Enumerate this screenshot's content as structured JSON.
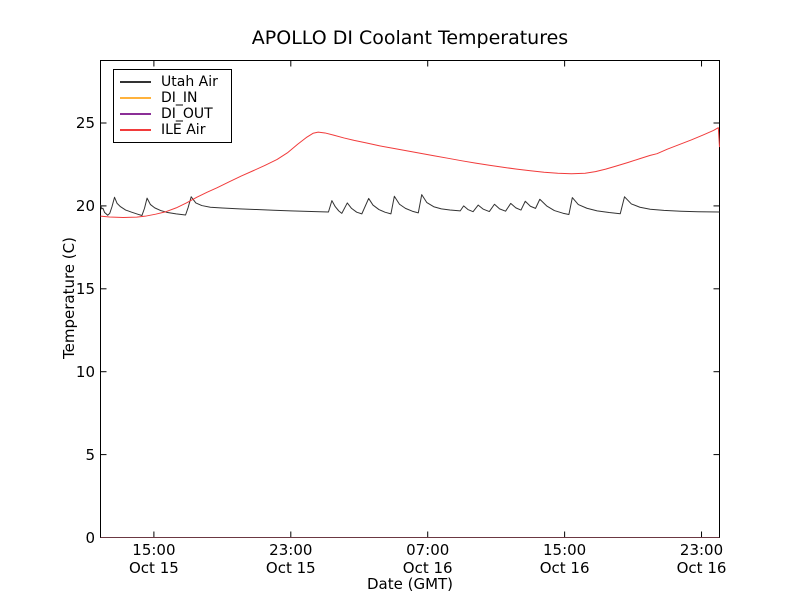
{
  "chart_data": {
    "type": "line",
    "title": "APOLLO DI Coolant Temperatures",
    "xlabel": "Date (GMT)",
    "ylabel": "Temperature (C)",
    "x_unit": "hours since Oct 15 00:00 GMT",
    "xlim": [
      11.88,
      48.05
    ],
    "ylim": [
      0,
      28.77
    ],
    "grid": false,
    "legend_position": "upper-left",
    "x_ticks": [
      {
        "t": 15,
        "time": "15:00",
        "date": "Oct 15"
      },
      {
        "t": 23,
        "time": "23:00",
        "date": "Oct 15"
      },
      {
        "t": 31,
        "time": "07:00",
        "date": "Oct 16"
      },
      {
        "t": 39,
        "time": "15:00",
        "date": "Oct 16"
      },
      {
        "t": 47,
        "time": "23:00",
        "date": "Oct 16"
      }
    ],
    "y_ticks": [
      0,
      5,
      10,
      15,
      20,
      25
    ],
    "y_tick_labels": [
      "0",
      "5",
      "10",
      "15",
      "20",
      "25"
    ],
    "series": [
      {
        "name": "Utah Air",
        "color": "#333333",
        "points": [
          [
            11.88,
            20.08
          ],
          [
            11.95,
            19.82
          ],
          [
            12.02,
            19.86
          ],
          [
            12.12,
            19.6
          ],
          [
            12.3,
            19.44
          ],
          [
            12.42,
            19.55
          ],
          [
            12.55,
            19.95
          ],
          [
            12.7,
            20.52
          ],
          [
            12.85,
            20.15
          ],
          [
            13.05,
            19.95
          ],
          [
            13.35,
            19.75
          ],
          [
            13.7,
            19.62
          ],
          [
            14.05,
            19.5
          ],
          [
            14.3,
            19.42
          ],
          [
            14.45,
            19.85
          ],
          [
            14.6,
            20.47
          ],
          [
            14.8,
            20.08
          ],
          [
            15.05,
            19.88
          ],
          [
            15.4,
            19.72
          ],
          [
            15.8,
            19.6
          ],
          [
            16.3,
            19.52
          ],
          [
            16.85,
            19.45
          ],
          [
            17.0,
            19.9
          ],
          [
            17.18,
            20.55
          ],
          [
            17.45,
            20.18
          ],
          [
            17.8,
            20.02
          ],
          [
            18.3,
            19.92
          ],
          [
            19.0,
            19.87
          ],
          [
            20.0,
            19.82
          ],
          [
            21.0,
            19.78
          ],
          [
            22.0,
            19.74
          ],
          [
            23.0,
            19.7
          ],
          [
            24.2,
            19.66
          ],
          [
            25.2,
            19.63
          ],
          [
            25.4,
            20.32
          ],
          [
            25.6,
            19.95
          ],
          [
            25.8,
            19.7
          ],
          [
            25.98,
            19.55
          ],
          [
            26.3,
            20.18
          ],
          [
            26.55,
            19.85
          ],
          [
            26.85,
            19.62
          ],
          [
            27.15,
            19.52
          ],
          [
            27.55,
            20.45
          ],
          [
            27.8,
            20.05
          ],
          [
            28.15,
            19.78
          ],
          [
            28.5,
            19.62
          ],
          [
            28.85,
            19.52
          ],
          [
            29.05,
            20.58
          ],
          [
            29.35,
            20.1
          ],
          [
            29.7,
            19.85
          ],
          [
            30.1,
            19.68
          ],
          [
            30.45,
            19.58
          ],
          [
            30.65,
            20.68
          ],
          [
            30.95,
            20.2
          ],
          [
            31.35,
            19.95
          ],
          [
            31.8,
            19.82
          ],
          [
            32.3,
            19.75
          ],
          [
            32.9,
            19.7
          ],
          [
            33.1,
            20.0
          ],
          [
            33.35,
            19.78
          ],
          [
            33.65,
            19.65
          ],
          [
            33.95,
            20.05
          ],
          [
            34.25,
            19.8
          ],
          [
            34.6,
            19.66
          ],
          [
            34.9,
            20.1
          ],
          [
            35.2,
            19.82
          ],
          [
            35.55,
            19.68
          ],
          [
            35.85,
            20.15
          ],
          [
            36.15,
            19.88
          ],
          [
            36.45,
            19.75
          ],
          [
            36.7,
            20.28
          ],
          [
            37.0,
            19.98
          ],
          [
            37.3,
            19.85
          ],
          [
            37.55,
            20.4
          ],
          [
            37.95,
            20.0
          ],
          [
            38.4,
            19.72
          ],
          [
            38.9,
            19.56
          ],
          [
            39.25,
            19.48
          ],
          [
            39.45,
            20.5
          ],
          [
            39.8,
            20.08
          ],
          [
            40.3,
            19.86
          ],
          [
            40.9,
            19.7
          ],
          [
            41.6,
            19.6
          ],
          [
            42.25,
            19.53
          ],
          [
            42.5,
            20.55
          ],
          [
            42.9,
            20.12
          ],
          [
            43.4,
            19.92
          ],
          [
            44.0,
            19.8
          ],
          [
            44.8,
            19.73
          ],
          [
            45.8,
            19.68
          ],
          [
            46.8,
            19.65
          ],
          [
            48.05,
            19.63
          ]
        ]
      },
      {
        "name": "DI_IN",
        "color": "#ffb23c",
        "points": [
          [
            11.88,
            0
          ],
          [
            48.05,
            0
          ]
        ]
      },
      {
        "name": "DI_OUT",
        "color": "#8b2f97",
        "points": [
          [
            11.88,
            0
          ],
          [
            48.05,
            0
          ]
        ]
      },
      {
        "name": "ILE Air",
        "color": "#f13b3b",
        "points": [
          [
            11.88,
            19.38
          ],
          [
            12.4,
            19.33
          ],
          [
            13.2,
            19.3
          ],
          [
            14.0,
            19.32
          ],
          [
            14.5,
            19.38
          ],
          [
            15.1,
            19.5
          ],
          [
            15.7,
            19.65
          ],
          [
            16.3,
            19.88
          ],
          [
            16.9,
            20.18
          ],
          [
            17.5,
            20.52
          ],
          [
            18.1,
            20.82
          ],
          [
            18.7,
            21.1
          ],
          [
            19.4,
            21.45
          ],
          [
            20.1,
            21.8
          ],
          [
            20.8,
            22.12
          ],
          [
            21.5,
            22.45
          ],
          [
            22.2,
            22.8
          ],
          [
            22.8,
            23.2
          ],
          [
            23.4,
            23.72
          ],
          [
            23.9,
            24.12
          ],
          [
            24.3,
            24.38
          ],
          [
            24.6,
            24.45
          ],
          [
            25.0,
            24.4
          ],
          [
            25.5,
            24.27
          ],
          [
            26.1,
            24.1
          ],
          [
            26.7,
            23.95
          ],
          [
            27.4,
            23.8
          ],
          [
            28.2,
            23.62
          ],
          [
            29.0,
            23.47
          ],
          [
            29.8,
            23.32
          ],
          [
            30.6,
            23.17
          ],
          [
            31.4,
            23.02
          ],
          [
            32.2,
            22.87
          ],
          [
            33.0,
            22.72
          ],
          [
            33.8,
            22.58
          ],
          [
            34.6,
            22.45
          ],
          [
            35.4,
            22.33
          ],
          [
            36.2,
            22.22
          ],
          [
            37.0,
            22.12
          ],
          [
            37.8,
            22.03
          ],
          [
            38.6,
            21.97
          ],
          [
            39.4,
            21.94
          ],
          [
            40.2,
            21.97
          ],
          [
            40.8,
            22.07
          ],
          [
            41.4,
            22.22
          ],
          [
            42.0,
            22.4
          ],
          [
            42.7,
            22.62
          ],
          [
            43.4,
            22.85
          ],
          [
            44.0,
            23.05
          ],
          [
            44.4,
            23.15
          ],
          [
            45.0,
            23.42
          ],
          [
            45.7,
            23.7
          ],
          [
            46.4,
            23.98
          ],
          [
            47.1,
            24.28
          ],
          [
            47.7,
            24.55
          ],
          [
            47.98,
            24.72
          ],
          [
            48.05,
            23.55
          ]
        ]
      }
    ],
    "spine_color": "#000000",
    "overlap_note": "DI_IN and DI_OUT lie flat at 0 on the bottom spine"
  }
}
